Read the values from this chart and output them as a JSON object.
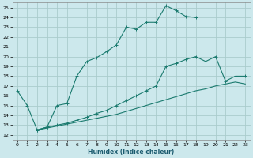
{
  "xlabel": "Humidex (Indice chaleur)",
  "bg_color": "#cce8ec",
  "grid_color": "#aacccc",
  "line_color": "#1a7a6e",
  "xlim": [
    -0.5,
    23.5
  ],
  "ylim": [
    11.5,
    25.5
  ],
  "xticks": [
    0,
    1,
    2,
    3,
    4,
    5,
    6,
    7,
    8,
    9,
    10,
    11,
    12,
    13,
    14,
    15,
    16,
    17,
    18,
    19,
    20,
    21,
    22,
    23
  ],
  "yticks": [
    12,
    13,
    14,
    15,
    16,
    17,
    18,
    19,
    20,
    21,
    22,
    23,
    24,
    25
  ],
  "line1_x": [
    0,
    1,
    2,
    3,
    4,
    5,
    6,
    7,
    8,
    9,
    10,
    11,
    12,
    13,
    14,
    15,
    16,
    17,
    18
  ],
  "line1_y": [
    16.5,
    15.0,
    12.5,
    12.8,
    15.0,
    15.2,
    18.0,
    19.5,
    19.9,
    20.5,
    21.2,
    23.0,
    22.8,
    23.5,
    23.5,
    25.2,
    24.7,
    24.1,
    24.0
  ],
  "line2_x": [
    2,
    3,
    4,
    5,
    6,
    7,
    8,
    9,
    10,
    11,
    12,
    13,
    14,
    15,
    16,
    17,
    18,
    19,
    20,
    21,
    22,
    23
  ],
  "line2_y": [
    12.5,
    12.8,
    13.0,
    13.2,
    13.5,
    13.8,
    14.2,
    14.5,
    15.0,
    15.5,
    16.0,
    16.5,
    17.0,
    19.0,
    19.3,
    19.7,
    20.0,
    19.5,
    20.0,
    17.5,
    18.0,
    18.0
  ],
  "line3_x": [
    2,
    3,
    4,
    5,
    6,
    7,
    8,
    9,
    10,
    11,
    12,
    13,
    14,
    15,
    16,
    17,
    18,
    19,
    20,
    21,
    22,
    23
  ],
  "line3_y": [
    12.5,
    12.7,
    12.9,
    13.1,
    13.3,
    13.5,
    13.7,
    13.9,
    14.1,
    14.4,
    14.7,
    15.0,
    15.3,
    15.6,
    15.9,
    16.2,
    16.5,
    16.7,
    17.0,
    17.2,
    17.4,
    17.2
  ]
}
